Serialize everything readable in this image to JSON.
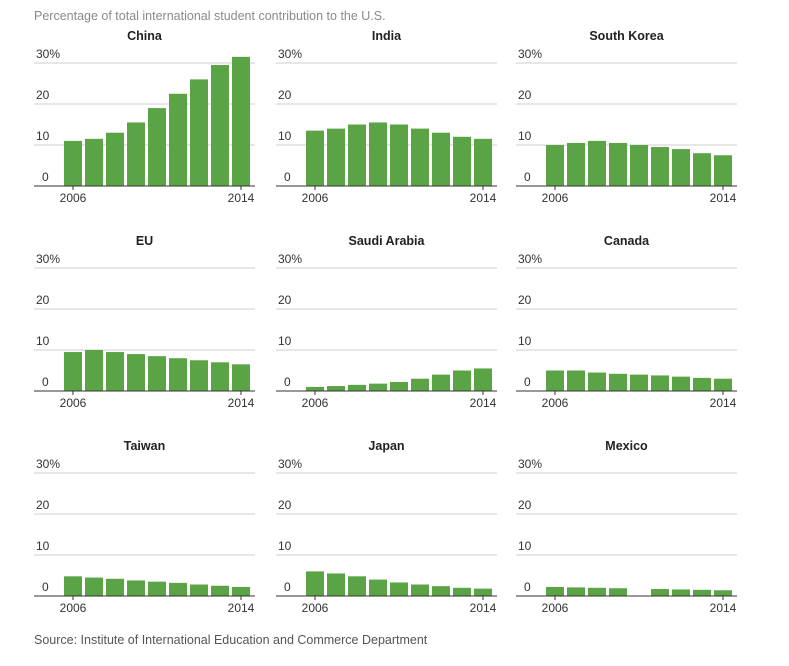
{
  "chart": {
    "subtitle": "Percentage of total international student contribution to the U.S.",
    "source": "Source: Institute of International Education and Commerce Department"
  },
  "colors": {
    "bar": "#5aa446",
    "grid": "#cfcfcf",
    "axis": "#333333"
  },
  "chart_data": {
    "type": "bar",
    "layout": "small-multiples 3x3",
    "x": [
      2006,
      2007,
      2008,
      2009,
      2010,
      2011,
      2012,
      2013,
      2014
    ],
    "x_tick_labels": [
      "2006",
      "2014"
    ],
    "y_tick_labels": [
      "30%",
      "20",
      "10",
      "0"
    ],
    "y_ticks": [
      30,
      20,
      10,
      0
    ],
    "ylim": [
      0,
      30
    ],
    "grid": true,
    "panels": [
      {
        "title": "China",
        "values": [
          11,
          11.5,
          13,
          15.5,
          19,
          22.5,
          26,
          29.5,
          31.5
        ]
      },
      {
        "title": "India",
        "values": [
          13.5,
          14,
          15,
          15.5,
          15,
          14,
          13,
          12,
          11.5
        ]
      },
      {
        "title": "South Korea",
        "values": [
          10,
          10.5,
          11,
          10.5,
          10,
          9.5,
          9,
          8,
          7.5
        ]
      },
      {
        "title": "EU",
        "values": [
          9.5,
          10,
          9.5,
          9,
          8.5,
          8,
          7.5,
          7,
          6.5
        ]
      },
      {
        "title": "Saudi Arabia",
        "values": [
          1,
          1.2,
          1.5,
          1.8,
          2.2,
          3,
          4,
          5,
          5.5
        ]
      },
      {
        "title": "Canada",
        "values": [
          5,
          5,
          4.5,
          4.2,
          4,
          3.8,
          3.5,
          3.2,
          3
        ]
      },
      {
        "title": "Taiwan",
        "values": [
          4.8,
          4.5,
          4.2,
          3.8,
          3.5,
          3.2,
          2.8,
          2.5,
          2.2
        ]
      },
      {
        "title": "Japan",
        "values": [
          6,
          5.5,
          4.8,
          4,
          3.3,
          2.8,
          2.4,
          2,
          1.8
        ]
      },
      {
        "title": "Mexico",
        "values": [
          2.2,
          2.1,
          2,
          1.9,
          null,
          1.7,
          1.6,
          1.5,
          1.4
        ]
      }
    ]
  }
}
